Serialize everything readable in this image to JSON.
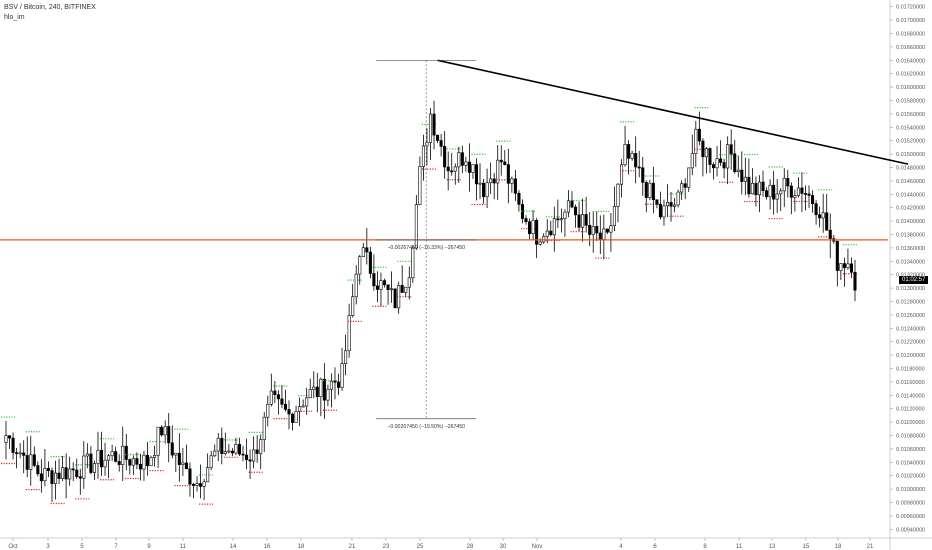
{
  "header": {
    "title": "BSV / Bitcoin, 240, BITFINEX",
    "indicator": "hlo_im"
  },
  "price_tag": "01:02:57",
  "chart_data": {
    "type": "candlestick",
    "ylim": [
      0.0093,
      0.0173
    ],
    "y_ticks": [
      "0.01720000",
      "0.01700000",
      "0.01680000",
      "0.01660000",
      "0.01640000",
      "0.01620000",
      "0.01600000",
      "0.01580000",
      "0.01560000",
      "0.01540000",
      "0.01520000",
      "0.01500000",
      "0.01480000",
      "0.01460000",
      "0.01440000",
      "0.01420000",
      "0.01400000",
      "0.01380000",
      "0.01360000",
      "0.01340000",
      "0.01320000",
      "0.01300000",
      "0.01280000",
      "0.01260000",
      "0.01240000",
      "0.01220000",
      "0.01200000",
      "0.01180000",
      "0.01160000",
      "0.01140000",
      "0.01120000",
      "0.01100000",
      "0.01080000",
      "0.01060000",
      "0.01040000",
      "0.01020000",
      "0.01000000",
      "0.00980000",
      "0.00960000",
      "0.00940000"
    ],
    "x_ticks": [
      "Oct",
      "3",
      "5",
      "7",
      "9",
      "11",
      "14",
      "16",
      "18",
      "21",
      "23",
      "25",
      "28",
      "30",
      "Nov",
      "4",
      "6",
      "8",
      "11",
      "13",
      "15",
      "18",
      "21"
    ],
    "anchors": [
      {
        "i": 0,
        "v": 0.0108
      },
      {
        "i": 10,
        "v": 0.0102
      },
      {
        "i": 20,
        "v": 0.0103
      },
      {
        "i": 30,
        "v": 0.0105
      },
      {
        "i": 40,
        "v": 0.0104
      },
      {
        "i": 44,
        "v": 0.0109
      },
      {
        "i": 50,
        "v": 0.0103
      },
      {
        "i": 54,
        "v": 0.0101
      },
      {
        "i": 60,
        "v": 0.0106
      },
      {
        "i": 70,
        "v": 0.0105
      },
      {
        "i": 75,
        "v": 0.0113
      },
      {
        "i": 80,
        "v": 0.0111
      },
      {
        "i": 85,
        "v": 0.0114
      },
      {
        "i": 90,
        "v": 0.0115
      },
      {
        "i": 95,
        "v": 0.0117
      },
      {
        "i": 100,
        "v": 0.0136
      },
      {
        "i": 105,
        "v": 0.0131
      },
      {
        "i": 110,
        "v": 0.0128
      },
      {
        "i": 114,
        "v": 0.0133
      },
      {
        "i": 117,
        "v": 0.0147
      },
      {
        "i": 120,
        "v": 0.0156
      },
      {
        "i": 125,
        "v": 0.0148
      },
      {
        "i": 130,
        "v": 0.015
      },
      {
        "i": 135,
        "v": 0.0145
      },
      {
        "i": 140,
        "v": 0.0149
      },
      {
        "i": 145,
        "v": 0.0142
      },
      {
        "i": 150,
        "v": 0.0138
      },
      {
        "i": 155,
        "v": 0.014
      },
      {
        "i": 160,
        "v": 0.0142
      },
      {
        "i": 165,
        "v": 0.0138
      },
      {
        "i": 170,
        "v": 0.0137
      },
      {
        "i": 175,
        "v": 0.015
      },
      {
        "i": 180,
        "v": 0.0146
      },
      {
        "i": 185,
        "v": 0.0141
      },
      {
        "i": 190,
        "v": 0.0143
      },
      {
        "i": 195,
        "v": 0.0152
      },
      {
        "i": 200,
        "v": 0.0149
      },
      {
        "i": 205,
        "v": 0.015
      },
      {
        "i": 210,
        "v": 0.0145
      },
      {
        "i": 215,
        "v": 0.0144
      },
      {
        "i": 220,
        "v": 0.0145
      },
      {
        "i": 225,
        "v": 0.0145
      },
      {
        "i": 230,
        "v": 0.0142
      },
      {
        "i": 235,
        "v": 0.0134
      },
      {
        "i": 239,
        "v": 0.0134
      },
      {
        "i": 240,
        "v": 0.0131
      }
    ],
    "num_bars": 241,
    "horizontal_line": {
      "value": 0.01372,
      "color": "#e8561f"
    },
    "trendline": {
      "from": {
        "i": 122,
        "v": 0.0164
      },
      "to": {
        "i": 255,
        "v": 0.01485
      },
      "color": "#000000"
    },
    "measure_upper": {
      "i": 125,
      "top": 0.0164,
      "bottom": 0.01372,
      "label": "−0.00267450 (−16.33%) −267450"
    },
    "measure_lower": {
      "i": 125,
      "top": 0.01372,
      "bottom": 0.01105,
      "label": "−0.00267450 (−19.50%) −267450"
    },
    "last_price_label": "01:02:57",
    "colors": {
      "up": "#ffffff",
      "down": "#000000",
      "marker_high": "#22cc22",
      "marker_low": "#e02020",
      "axis": "#555555"
    }
  }
}
